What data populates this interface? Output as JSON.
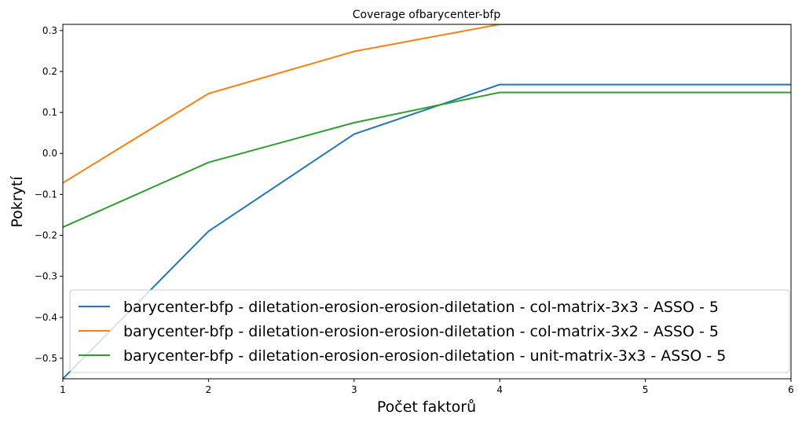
{
  "chart_data": {
    "type": "line",
    "title": "Coverage ofbarycenter-bfp",
    "xlabel": "Počet faktorů",
    "ylabel": "Pokrytí",
    "x": [
      1,
      2,
      3,
      4,
      5,
      6
    ],
    "xlim": [
      1,
      6
    ],
    "ylim": [
      -0.55,
      0.315
    ],
    "xticks": [
      1,
      2,
      3,
      4,
      5,
      6
    ],
    "xtick_labels": [
      "1",
      "2",
      "3",
      "4",
      "5",
      "6"
    ],
    "yticks": [
      -0.5,
      -0.4,
      -0.3,
      -0.2,
      -0.1,
      0.0,
      0.1,
      0.2,
      0.3
    ],
    "ytick_labels": [
      "−0.5",
      "−0.4",
      "−0.3",
      "−0.2",
      "−0.1",
      "0.0",
      "0.1",
      "0.2",
      "0.3"
    ],
    "grid": false,
    "legend_position": "lower-right",
    "series": [
      {
        "name": "barycenter-bfp - diletation-erosion-erosion-diletation - col-matrix-3x3 - ASSO - 5",
        "color": "#1f77b4",
        "values": [
          -0.55,
          -0.19,
          0.047,
          0.168,
          0.168,
          0.168
        ]
      },
      {
        "name": "barycenter-bfp - diletation-erosion-erosion-diletation - col-matrix-3x2 - ASSO - 5",
        "color": "#ff7f0e",
        "values": [
          -0.072,
          0.146,
          0.249,
          0.315,
          0.315,
          0.315
        ]
      },
      {
        "name": "barycenter-bfp - diletation-erosion-erosion-diletation - unit-matrix-3x3 - ASSO - 5",
        "color": "#2ca02c",
        "values": [
          -0.18,
          -0.022,
          0.075,
          0.149,
          0.149,
          0.149
        ]
      }
    ]
  }
}
